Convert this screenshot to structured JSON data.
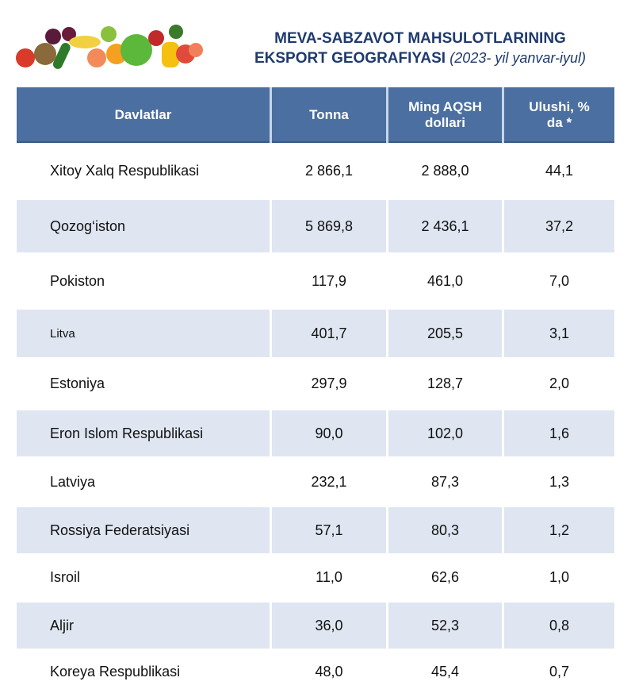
{
  "title": {
    "line1": "MEVA-SABZAVOT MAHSULOTLARINING",
    "line2": "EKSPORT GEOGRAFIYASI",
    "period": "(2023- yil yanvar-iyul)"
  },
  "headers": [
    "Davlatlar",
    "Tonna",
    "Ming AQSH dollari",
    "Ulushi, % da *"
  ],
  "rows": [
    {
      "country": "Xitoy Xalq Respublikasi",
      "tonna": "2 866,1",
      "usd": "2 888,0",
      "share": "44,1"
    },
    {
      "country": "Qozog‘iston",
      "tonna": "5 869,8",
      "usd": "2 436,1",
      "share": "37,2"
    },
    {
      "country": "Pokiston",
      "tonna": "117,9",
      "usd": "461,0",
      "share": "7,0"
    },
    {
      "country": "Litva",
      "tonna": "401,7",
      "usd": "205,5",
      "share": "3,1"
    },
    {
      "country": "Estoniya",
      "tonna": "297,9",
      "usd": "128,7",
      "share": "2,0"
    },
    {
      "country": "Eron Islom Respublikasi",
      "tonna": "90,0",
      "usd": "102,0",
      "share": "1,6"
    },
    {
      "country": "Latviya",
      "tonna": "232,1",
      "usd": "87,3",
      "share": "1,3"
    },
    {
      "country": "Rossiya Federatsiyasi",
      "tonna": "57,1",
      "usd": "80,3",
      "share": "1,2"
    },
    {
      "country": "Isroil",
      "tonna": "11,0",
      "usd": "62,6",
      "share": "1,0"
    },
    {
      "country": "Aljir",
      "tonna": "36,0",
      "usd": "52,3",
      "share": "0,8"
    },
    {
      "country": "Koreya Respublikasi",
      "tonna": "48,0",
      "usd": "45,4",
      "share": "0,7"
    }
  ]
}
